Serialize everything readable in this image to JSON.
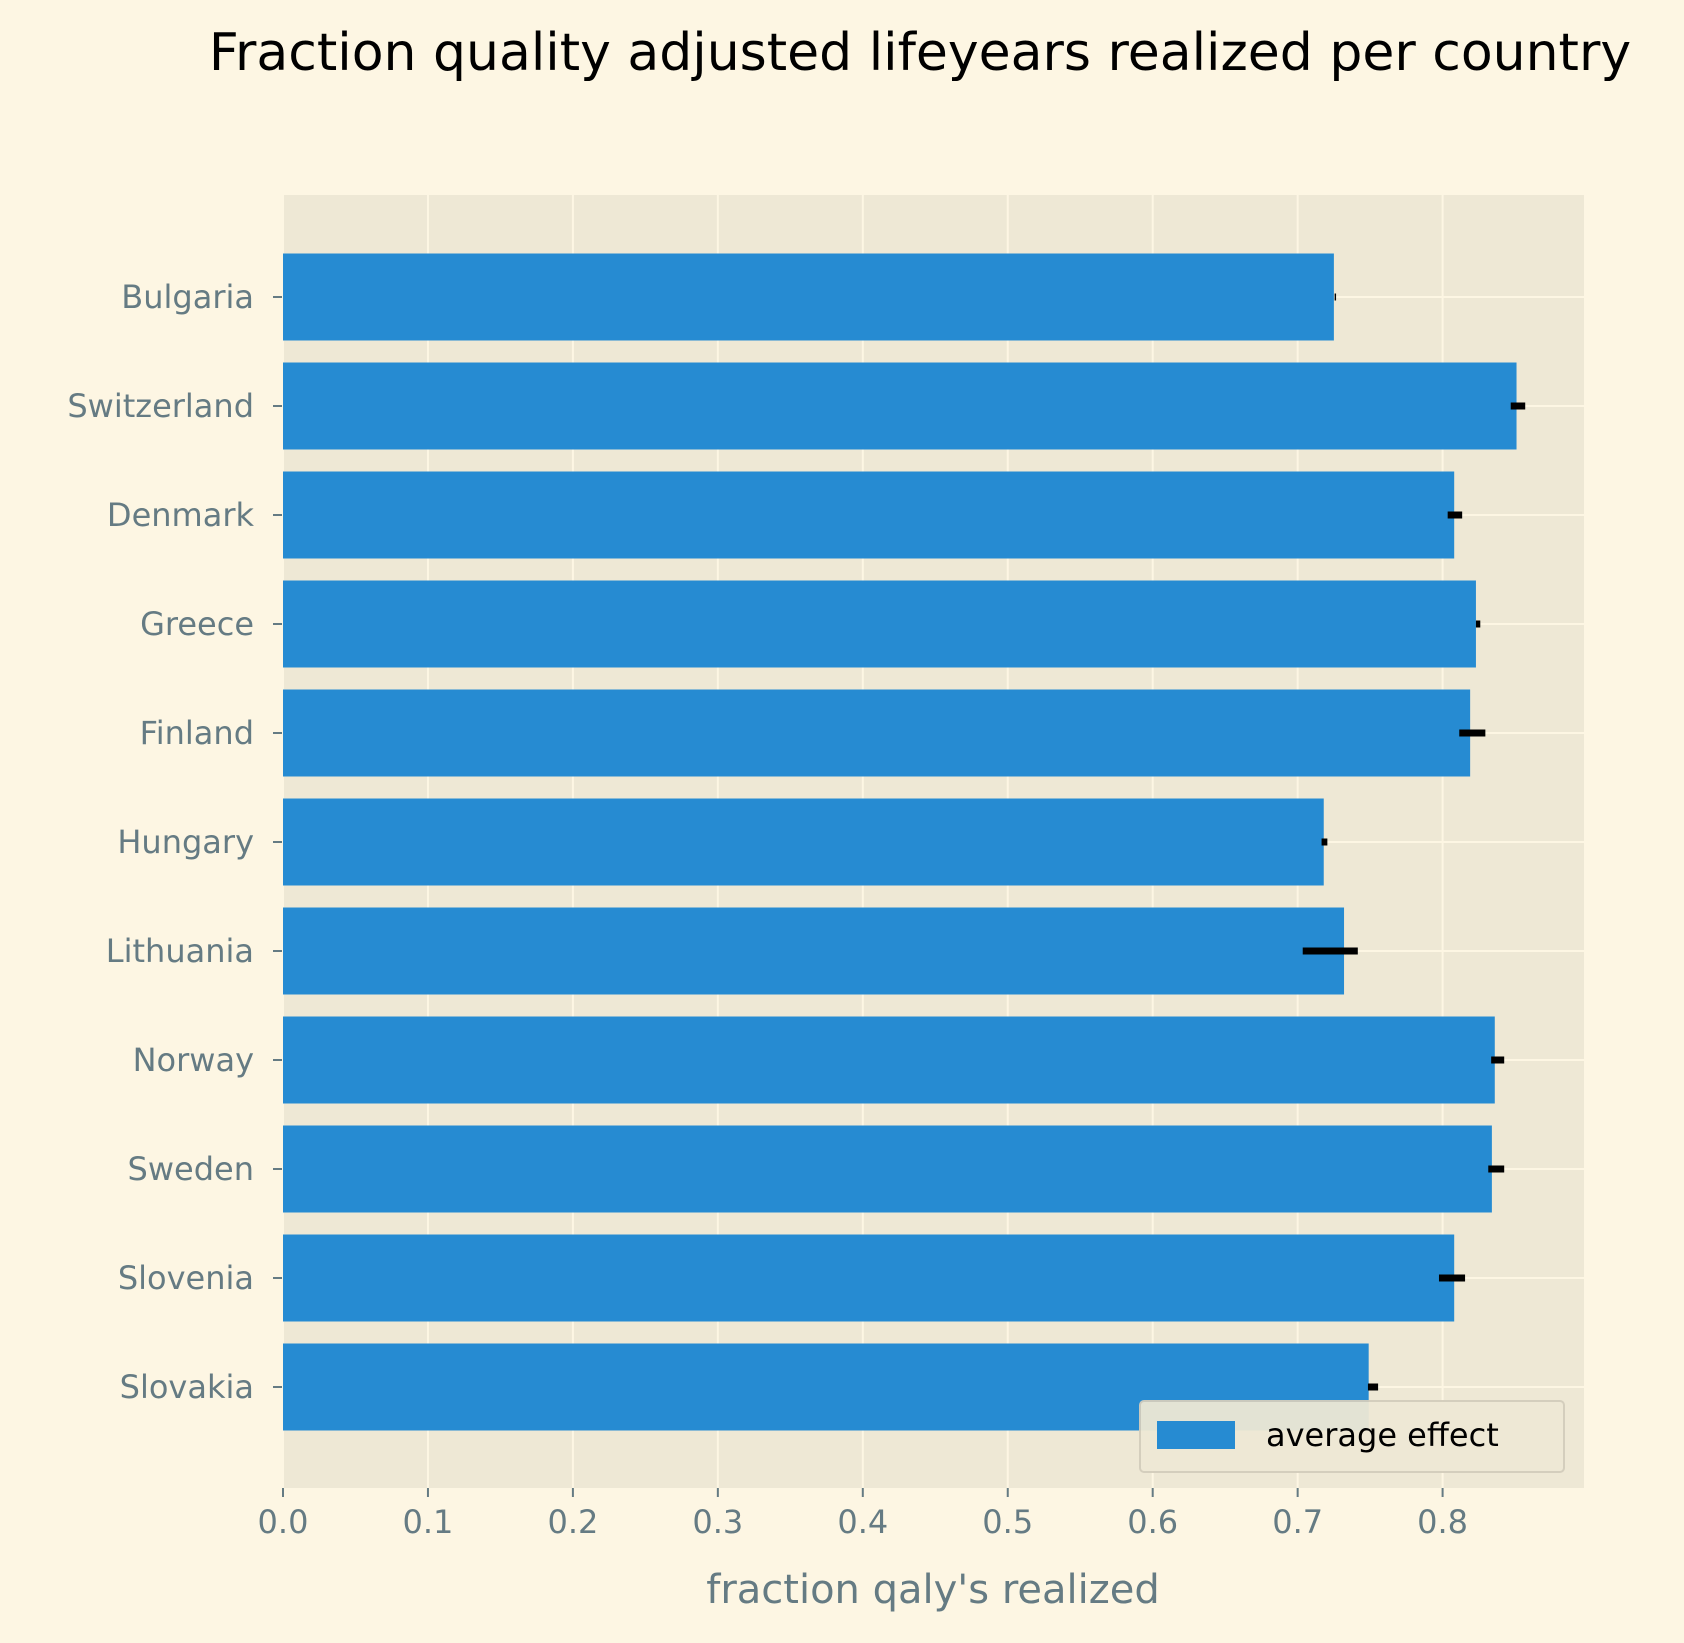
{
  "colors": {
    "page_background": "#fdf6e3",
    "plot_background": "#eee8d5",
    "bar": "#268bd2",
    "error_bar": "#000000",
    "grid": "#fdf6e3",
    "tick_text": "#657b83"
  },
  "chart_data": {
    "type": "bar",
    "orientation": "horizontal",
    "title": "Fraction quality adjusted lifeyears realized per country",
    "xlabel": "fraction qaly's realized",
    "ylabel": "",
    "xlim": [
      0,
      0.9
    ],
    "xticks": [
      0.0,
      0.1,
      0.2,
      0.3,
      0.4,
      0.5,
      0.6,
      0.7,
      0.8
    ],
    "xtick_labels": [
      "0.0",
      "0.1",
      "0.2",
      "0.3",
      "0.4",
      "0.5",
      "0.6",
      "0.7",
      "0.8"
    ],
    "grid": true,
    "legend": {
      "position": "lower right",
      "entries": [
        "average effect"
      ]
    },
    "categories": [
      "Bulgaria",
      "Switzerland",
      "Denmark",
      "Greece",
      "Finland",
      "Hungary",
      "Lithuania",
      "Norway",
      "Sweden",
      "Slovenia",
      "Slovakia"
    ],
    "series": [
      {
        "name": "average effect",
        "values": [
          0.725,
          0.851,
          0.808,
          0.823,
          0.819,
          0.718,
          0.732,
          0.836,
          0.834,
          0.808,
          0.749
        ],
        "error_low": [
          0.7255,
          0.847,
          0.8035,
          0.823,
          0.8115,
          0.7165,
          0.7035,
          0.8335,
          0.8315,
          0.7975,
          0.7485
        ],
        "error_high": [
          0.7265,
          0.857,
          0.8135,
          0.826,
          0.8295,
          0.7205,
          0.7415,
          0.8425,
          0.8425,
          0.8155,
          0.7555
        ]
      }
    ]
  }
}
